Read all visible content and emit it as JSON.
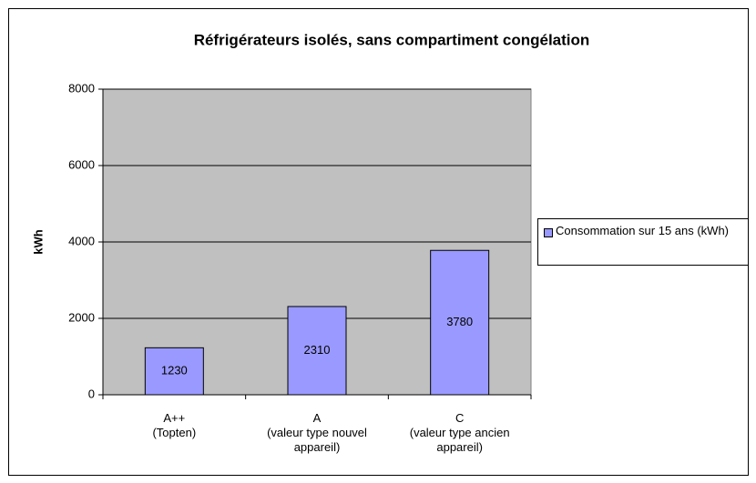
{
  "chart_data": {
    "type": "bar",
    "title": "Réfrigérateurs isolés, sans compartiment congélation",
    "y_label": "kWh",
    "categories": [
      "A++\n(Topten)",
      "A\n(valeur type nouvel\nappareil)",
      "C\n(valeur type ancien\nappareil)"
    ],
    "series": [
      {
        "name": "Consommation sur 15 ans (kWh)",
        "color": "#9999ff",
        "values": [
          1230,
          2310,
          3780
        ]
      }
    ],
    "ylim": [
      0,
      8000
    ],
    "yticks": [
      0,
      2000,
      4000,
      6000,
      8000
    ],
    "grid": true,
    "legend": "right",
    "plot_background": "#c0c0c0"
  }
}
